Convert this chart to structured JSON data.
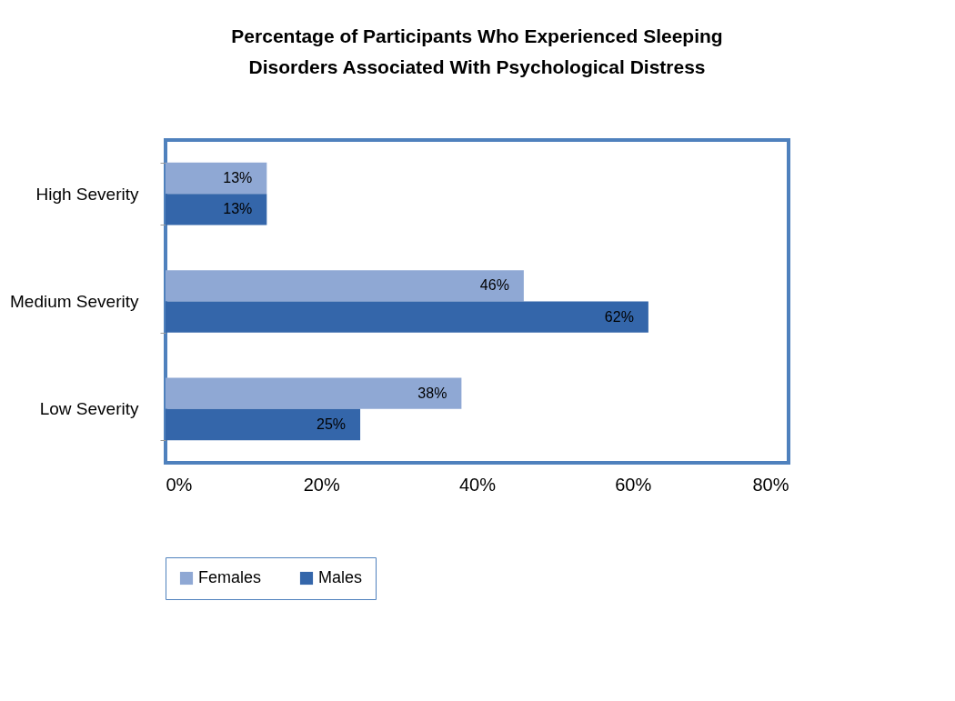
{
  "chart_data": {
    "type": "bar",
    "orientation": "horizontal",
    "title": "Percentage of Participants Who Experienced Sleeping Disorders Associated With Psychological Distress",
    "categories": [
      "High Severity",
      "Medium Severity",
      "Low Severity"
    ],
    "series": [
      {
        "name": "Females",
        "color": "#8fa8d4",
        "values": [
          13,
          46,
          38
        ],
        "value_labels": [
          "13%",
          "46%",
          "38%"
        ]
      },
      {
        "name": "Males",
        "color": "#3466aa",
        "values": [
          13,
          62,
          25
        ],
        "value_labels": [
          "13%",
          "62%",
          "25%"
        ]
      }
    ],
    "xlim": [
      0,
      80
    ],
    "xticks": [
      {
        "value": 0,
        "label": "0%"
      },
      {
        "value": 20,
        "label": "20%"
      },
      {
        "value": 40,
        "label": "40%"
      },
      {
        "value": 60,
        "label": "60%"
      },
      {
        "value": 80,
        "label": "80%"
      }
    ],
    "legend": "bottom"
  }
}
